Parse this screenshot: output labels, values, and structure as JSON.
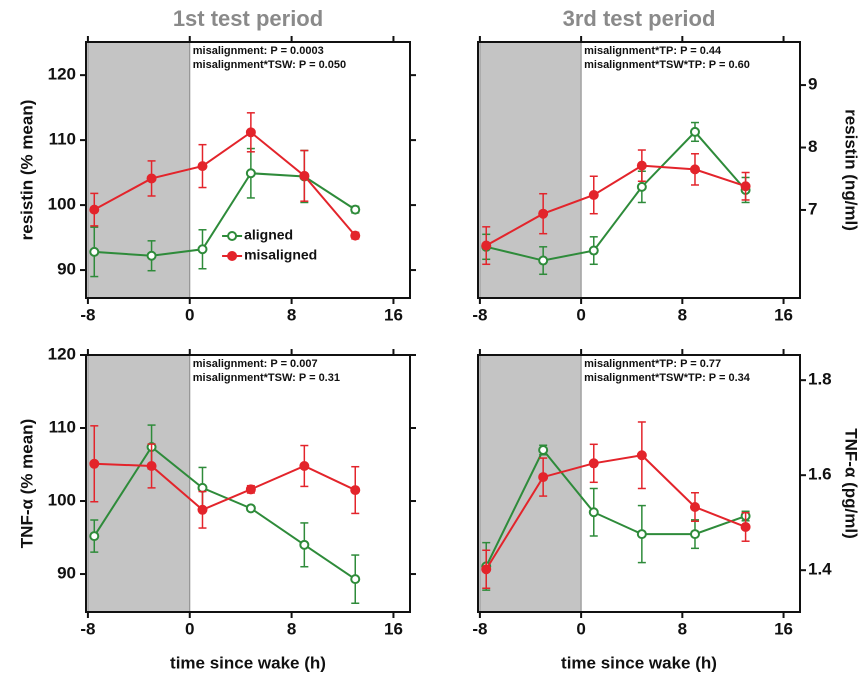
{
  "chart_data": [
    {
      "type": "line",
      "title": "1st test period",
      "ylabel": "resistin (% mean)",
      "xlim": [
        -8.15,
        17.3
      ],
      "xticks": [
        -8,
        0,
        8,
        16
      ],
      "ylim": [
        85.7,
        125.1
      ],
      "yticks": [
        90,
        100,
        110,
        120
      ],
      "shade": [
        -8,
        0
      ],
      "legend": "lower-center",
      "annotations": [
        "misalignment: P = 0.0003",
        "misalignment*TSW: P = 0.050"
      ],
      "x": [
        -7.5,
        -3,
        1,
        4.8,
        9,
        13
      ],
      "series": [
        {
          "name": "aligned",
          "color": "#2e8b3a",
          "marker": "open",
          "values": [
            92.8,
            92.2,
            93.2,
            104.9,
            104.4,
            99.3
          ],
          "errors": [
            3.8,
            2.3,
            3.0,
            3.8,
            4.0,
            0.5
          ]
        },
        {
          "name": "misaligned",
          "color": "#e3242b",
          "marker": "filled",
          "values": [
            99.3,
            104.1,
            106.0,
            111.2,
            104.5,
            95.3
          ],
          "errors": [
            2.5,
            2.7,
            3.3,
            3.0,
            3.9,
            0.5
          ]
        }
      ]
    },
    {
      "type": "line",
      "title": "3rd test period",
      "y2label": "resistin (ng/ml)",
      "xlim": [
        -8.15,
        17.3
      ],
      "xticks": [
        -8,
        0,
        8,
        16
      ],
      "y2lim": [
        5.59,
        9.69
      ],
      "y2ticks": [
        7,
        8,
        9
      ],
      "shade": [
        -8,
        0
      ],
      "annotations": [
        "misalignment*TP: P = 0.44",
        "misalignment*TSW*TP: P = 0.60"
      ],
      "x": [
        -7.5,
        -3,
        1,
        4.8,
        9,
        13
      ],
      "series": [
        {
          "color": "#2e8b3a",
          "marker": "open",
          "axis": "y2",
          "values": [
            6.41,
            6.19,
            6.35,
            7.37,
            8.25,
            7.32
          ],
          "errors": [
            0.2,
            0.22,
            0.22,
            0.25,
            0.15,
            0.2
          ]
        },
        {
          "color": "#e3242b",
          "marker": "filled",
          "axis": "y2",
          "values": [
            6.43,
            6.94,
            7.24,
            7.71,
            7.65,
            7.38
          ],
          "errors": [
            0.3,
            0.32,
            0.3,
            0.25,
            0.25,
            0.22
          ]
        }
      ]
    },
    {
      "type": "line",
      "ylabel": "TNF-α (% mean)",
      "xlabel": "time since wake (h)",
      "xlim": [
        -8.15,
        17.3
      ],
      "xticks": [
        -8,
        0,
        8,
        16
      ],
      "ylim": [
        84.8,
        120
      ],
      "yticks": [
        90,
        100,
        110,
        120
      ],
      "shade": [
        -8,
        0
      ],
      "annotations": [
        "misalignment: P = 0.007",
        "misalignment*TSW: P = 0.31"
      ],
      "x": [
        -7.5,
        -3,
        1,
        4.8,
        9,
        13
      ],
      "series": [
        {
          "color": "#2e8b3a",
          "marker": "open",
          "values": [
            95.2,
            107.4,
            101.8,
            99.0,
            94.0,
            89.3
          ],
          "errors": [
            2.2,
            3.0,
            2.8,
            0.3,
            3.0,
            3.3
          ]
        },
        {
          "color": "#e3242b",
          "marker": "filled",
          "values": [
            105.1,
            104.8,
            98.8,
            101.6,
            104.8,
            101.5
          ],
          "errors": [
            5.2,
            3.0,
            2.5,
            0.5,
            2.8,
            3.2
          ]
        }
      ]
    },
    {
      "type": "line",
      "y2label": "TNF-α (pg/ml)",
      "xlabel": "time since wake (h)",
      "xlim": [
        -8.15,
        17.3
      ],
      "xticks": [
        -8,
        0,
        8,
        16
      ],
      "y2lim": [
        1.312,
        1.853
      ],
      "y2ticks": [
        1.4,
        1.6,
        1.8
      ],
      "shade": [
        -8,
        0
      ],
      "annotations": [
        "misalignment*TP: P = 0.77",
        "misalignment*TSW*TP: P = 0.34"
      ],
      "x": [
        -7.5,
        -3,
        1,
        4.8,
        9,
        13
      ],
      "series": [
        {
          "color": "#2e8b3a",
          "marker": "open",
          "axis": "y2",
          "values": [
            1.408,
            1.653,
            1.522,
            1.476,
            1.476,
            1.514
          ],
          "errors": [
            0.05,
            0.01,
            0.05,
            0.06,
            0.03,
            0.01
          ]
        },
        {
          "color": "#e3242b",
          "marker": "filled",
          "axis": "y2",
          "values": [
            1.402,
            1.596,
            1.625,
            1.642,
            1.533,
            1.491
          ],
          "errors": [
            0.04,
            0.04,
            0.04,
            0.07,
            0.03,
            0.03
          ]
        }
      ]
    }
  ]
}
